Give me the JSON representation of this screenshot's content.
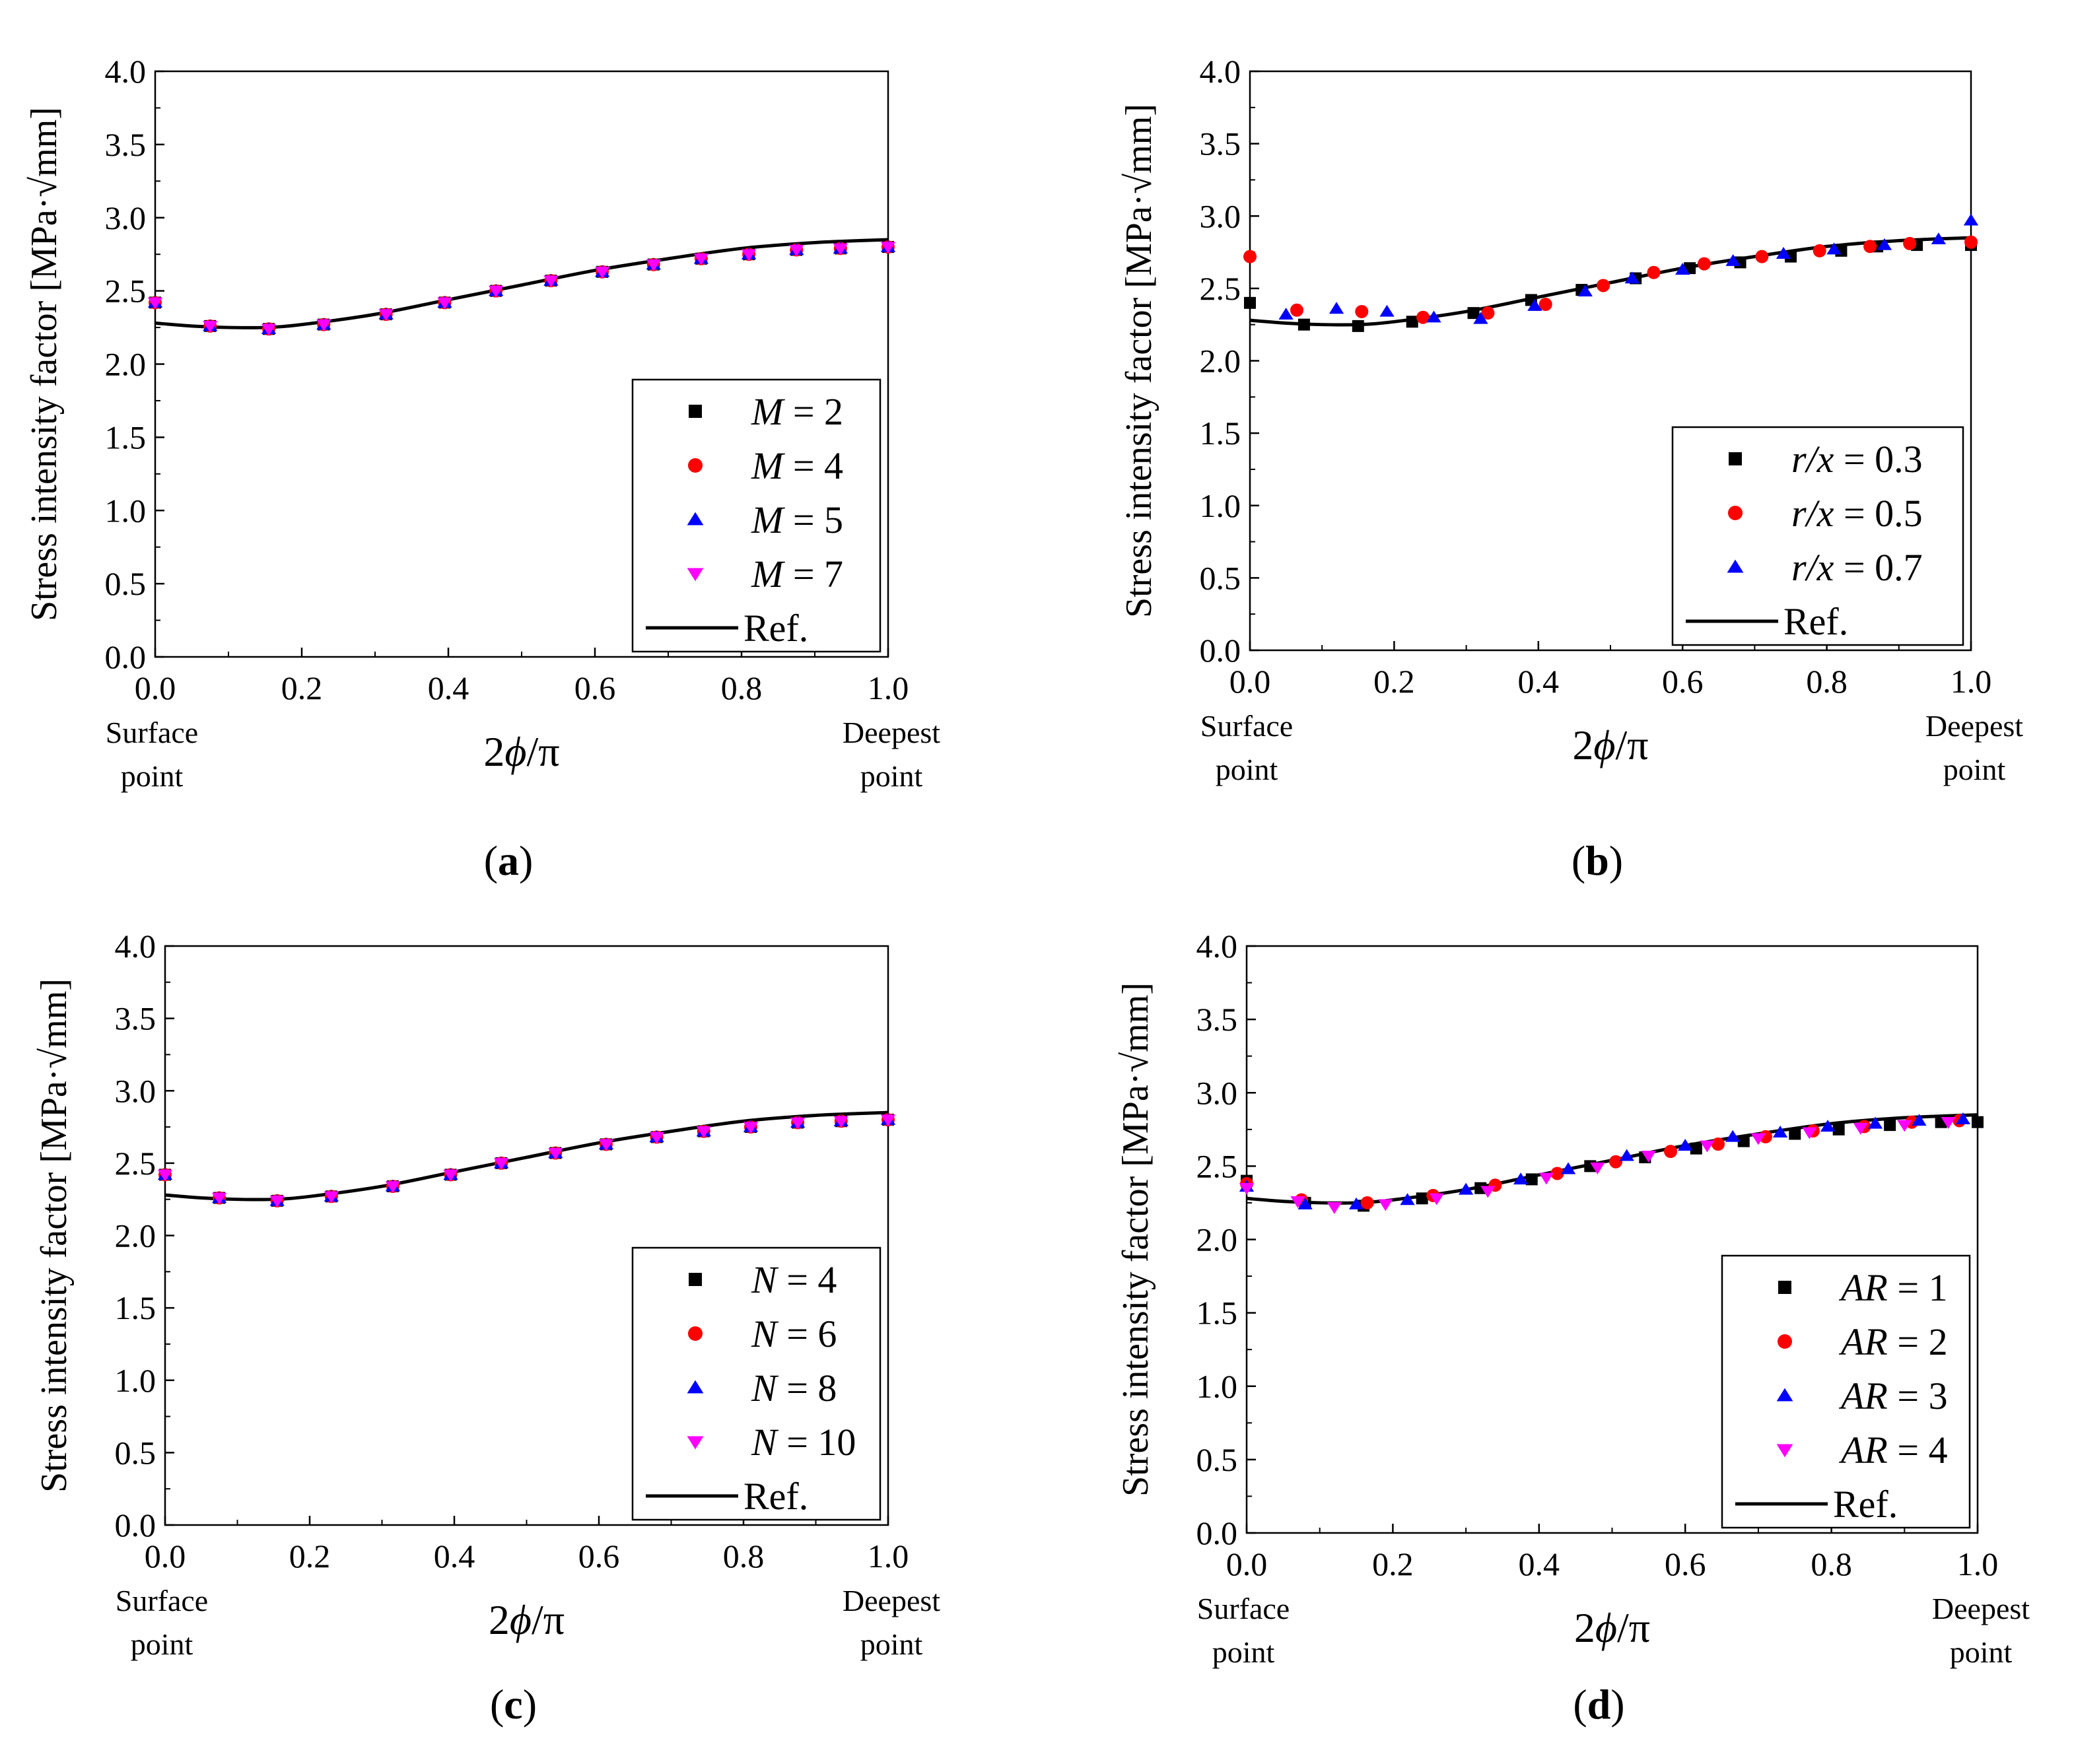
{
  "chart_data": [
    {
      "type": "scatter",
      "panel_label": "(a)",
      "caption_letter": "a",
      "ylabel": "Stress intensity factor [MPa·√mm]",
      "xlabel_prefix": "2",
      "xlabel_var": "ϕ",
      "xlabel_suffix": "/π",
      "xlim": [
        0,
        1
      ],
      "ylim": [
        0,
        4
      ],
      "x_ticks": [
        "0.0",
        "0.2",
        "0.4",
        "0.6",
        "0.8",
        "1.0"
      ],
      "y_ticks": [
        "0.0",
        "0.5",
        "1.0",
        "1.5",
        "2.0",
        "2.5",
        "3.0",
        "3.5",
        "4.0"
      ],
      "x_end_labels": {
        "left": [
          "Surface",
          "point"
        ],
        "right": [
          "Deepest",
          "point"
        ]
      },
      "legend_position": "lower-right",
      "reference": {
        "name": "Ref.",
        "x": [
          0,
          0.05,
          0.1,
          0.15,
          0.2,
          0.3,
          0.4,
          0.5,
          0.6,
          0.7,
          0.8,
          0.9,
          1.0
        ],
        "y": [
          2.28,
          2.26,
          2.25,
          2.25,
          2.27,
          2.34,
          2.44,
          2.54,
          2.64,
          2.72,
          2.79,
          2.83,
          2.85
        ]
      },
      "series": [
        {
          "name": "M",
          "value": "= 2",
          "marker": "square",
          "color": "#000000",
          "x": [
            0,
            0.075,
            0.155,
            0.23,
            0.315,
            0.395,
            0.465,
            0.54,
            0.61,
            0.68,
            0.745,
            0.81,
            0.875,
            0.935,
            1.0
          ],
          "y": [
            2.42,
            2.26,
            2.24,
            2.27,
            2.34,
            2.42,
            2.5,
            2.57,
            2.63,
            2.68,
            2.72,
            2.75,
            2.78,
            2.79,
            2.8
          ]
        },
        {
          "name": "M",
          "value": "= 4",
          "marker": "circle",
          "color": "#ff0000",
          "x": [
            0,
            0.075,
            0.155,
            0.23,
            0.315,
            0.395,
            0.465,
            0.54,
            0.61,
            0.68,
            0.745,
            0.81,
            0.875,
            0.935,
            1.0
          ],
          "y": [
            2.42,
            2.26,
            2.24,
            2.27,
            2.34,
            2.42,
            2.5,
            2.57,
            2.63,
            2.68,
            2.72,
            2.75,
            2.78,
            2.79,
            2.8
          ]
        },
        {
          "name": "M",
          "value": "= 5",
          "marker": "triangle-up",
          "color": "#0000ff",
          "x": [
            0,
            0.075,
            0.155,
            0.23,
            0.315,
            0.395,
            0.465,
            0.54,
            0.61,
            0.68,
            0.745,
            0.81,
            0.875,
            0.935,
            1.0
          ],
          "y": [
            2.42,
            2.26,
            2.24,
            2.27,
            2.34,
            2.42,
            2.5,
            2.57,
            2.63,
            2.68,
            2.72,
            2.75,
            2.78,
            2.79,
            2.8
          ]
        },
        {
          "name": "M",
          "value": "= 7",
          "marker": "triangle-down",
          "color": "#ff00ff",
          "x": [
            0,
            0.075,
            0.155,
            0.23,
            0.315,
            0.395,
            0.465,
            0.54,
            0.61,
            0.68,
            0.745,
            0.81,
            0.875,
            0.935,
            1.0
          ],
          "y": [
            2.42,
            2.26,
            2.24,
            2.27,
            2.34,
            2.42,
            2.5,
            2.57,
            2.63,
            2.68,
            2.72,
            2.75,
            2.78,
            2.79,
            2.8
          ]
        }
      ]
    },
    {
      "type": "scatter",
      "panel_label": "(b)",
      "caption_letter": "b",
      "ylabel": "Stress intensity factor [MPa·√mm]",
      "xlabel_prefix": "2",
      "xlabel_var": "ϕ",
      "xlabel_suffix": "/π",
      "xlim": [
        0,
        1
      ],
      "ylim": [
        0,
        4
      ],
      "x_ticks": [
        "0.0",
        "0.2",
        "0.4",
        "0.6",
        "0.8",
        "1.0"
      ],
      "y_ticks": [
        "0.0",
        "0.5",
        "1.0",
        "1.5",
        "2.0",
        "2.5",
        "3.0",
        "3.5",
        "4.0"
      ],
      "x_end_labels": {
        "left": [
          "Surface",
          "point"
        ],
        "right": [
          "Deepest",
          "point"
        ]
      },
      "legend_position": "lower-right",
      "reference": {
        "name": "Ref.",
        "x": [
          0,
          0.05,
          0.1,
          0.15,
          0.2,
          0.3,
          0.4,
          0.5,
          0.6,
          0.7,
          0.8,
          0.9,
          1.0
        ],
        "y": [
          2.28,
          2.26,
          2.25,
          2.25,
          2.27,
          2.34,
          2.44,
          2.54,
          2.64,
          2.72,
          2.79,
          2.83,
          2.85
        ]
      },
      "series": [
        {
          "name": "r/x",
          "value": "= 0.3",
          "marker": "square",
          "color": "#000000",
          "x": [
            0,
            0.075,
            0.15,
            0.225,
            0.31,
            0.39,
            0.46,
            0.535,
            0.61,
            0.68,
            0.75,
            0.82,
            0.87,
            0.925,
            1.0
          ],
          "y": [
            2.4,
            2.25,
            2.24,
            2.27,
            2.33,
            2.42,
            2.49,
            2.57,
            2.64,
            2.68,
            2.72,
            2.76,
            2.79,
            2.8,
            2.8
          ]
        },
        {
          "name": "r/x",
          "value": "= 0.5",
          "marker": "circle",
          "color": "#ff0000",
          "x": [
            0,
            0.065,
            0.155,
            0.24,
            0.33,
            0.41,
            0.49,
            0.56,
            0.63,
            0.71,
            0.79,
            0.86,
            0.915,
            1.0
          ],
          "y": [
            2.72,
            2.35,
            2.34,
            2.3,
            2.33,
            2.39,
            2.52,
            2.61,
            2.67,
            2.72,
            2.76,
            2.79,
            2.81,
            2.82
          ]
        },
        {
          "name": "r/x",
          "value": "= 0.7",
          "marker": "triangle-up",
          "color": "#0000ff",
          "x": [
            0.05,
            0.12,
            0.19,
            0.255,
            0.32,
            0.395,
            0.465,
            0.53,
            0.6,
            0.67,
            0.74,
            0.81,
            0.88,
            0.955,
            1.0
          ],
          "y": [
            2.32,
            2.36,
            2.34,
            2.3,
            2.29,
            2.38,
            2.48,
            2.57,
            2.63,
            2.69,
            2.74,
            2.77,
            2.8,
            2.84,
            2.97
          ]
        }
      ]
    },
    {
      "type": "scatter",
      "panel_label": "(c)",
      "caption_letter": "c",
      "ylabel": "Stress intensity factor [MPa·√mm]",
      "xlabel_prefix": "2",
      "xlabel_var": "ϕ",
      "xlabel_suffix": "/π",
      "xlim": [
        0,
        1
      ],
      "ylim": [
        0,
        4
      ],
      "x_ticks": [
        "0.0",
        "0.2",
        "0.4",
        "0.6",
        "0.8",
        "1.0"
      ],
      "y_ticks": [
        "0.0",
        "0.5",
        "1.0",
        "1.5",
        "2.0",
        "2.5",
        "3.0",
        "3.5",
        "4.0"
      ],
      "x_end_labels": {
        "left": [
          "Surface",
          "point"
        ],
        "right": [
          "Deepest",
          "point"
        ]
      },
      "legend_position": "lower-right",
      "reference": {
        "name": "Ref.",
        "x": [
          0,
          0.05,
          0.1,
          0.15,
          0.2,
          0.3,
          0.4,
          0.5,
          0.6,
          0.7,
          0.8,
          0.9,
          1.0
        ],
        "y": [
          2.28,
          2.26,
          2.25,
          2.25,
          2.27,
          2.34,
          2.44,
          2.54,
          2.64,
          2.72,
          2.79,
          2.83,
          2.85
        ]
      },
      "series": [
        {
          "name": "N",
          "value": "= 4",
          "marker": "square",
          "color": "#000000",
          "x": [
            0,
            0.075,
            0.155,
            0.23,
            0.315,
            0.395,
            0.465,
            0.54,
            0.61,
            0.68,
            0.745,
            0.81,
            0.875,
            0.935,
            1.0
          ],
          "y": [
            2.42,
            2.26,
            2.24,
            2.27,
            2.34,
            2.42,
            2.5,
            2.57,
            2.63,
            2.68,
            2.72,
            2.75,
            2.78,
            2.79,
            2.8
          ]
        },
        {
          "name": "N",
          "value": "= 6",
          "marker": "circle",
          "color": "#ff0000",
          "x": [
            0,
            0.075,
            0.155,
            0.23,
            0.315,
            0.395,
            0.465,
            0.54,
            0.61,
            0.68,
            0.745,
            0.81,
            0.875,
            0.935,
            1.0
          ],
          "y": [
            2.42,
            2.26,
            2.24,
            2.27,
            2.34,
            2.42,
            2.5,
            2.57,
            2.63,
            2.68,
            2.72,
            2.75,
            2.78,
            2.79,
            2.8
          ]
        },
        {
          "name": "N",
          "value": "= 8",
          "marker": "triangle-up",
          "color": "#0000ff",
          "x": [
            0,
            0.075,
            0.155,
            0.23,
            0.315,
            0.395,
            0.465,
            0.54,
            0.61,
            0.68,
            0.745,
            0.81,
            0.875,
            0.935,
            1.0
          ],
          "y": [
            2.42,
            2.26,
            2.24,
            2.27,
            2.34,
            2.42,
            2.5,
            2.57,
            2.63,
            2.68,
            2.72,
            2.75,
            2.78,
            2.79,
            2.8
          ]
        },
        {
          "name": "N",
          "value": "= 10",
          "marker": "triangle-down",
          "color": "#ff00ff",
          "x": [
            0,
            0.075,
            0.155,
            0.23,
            0.315,
            0.395,
            0.465,
            0.54,
            0.61,
            0.68,
            0.745,
            0.81,
            0.875,
            0.935,
            1.0
          ],
          "y": [
            2.42,
            2.26,
            2.24,
            2.27,
            2.34,
            2.42,
            2.5,
            2.57,
            2.63,
            2.68,
            2.72,
            2.75,
            2.78,
            2.79,
            2.8
          ]
        }
      ]
    },
    {
      "type": "scatter",
      "panel_label": "(d)",
      "caption_letter": "d",
      "ylabel": "Stress intensity factor [MPa·√mm]",
      "xlabel_prefix": "2",
      "xlabel_var": "ϕ",
      "xlabel_suffix": "/π",
      "xlim": [
        0,
        1
      ],
      "ylim": [
        0,
        4
      ],
      "x_ticks": [
        "0.0",
        "0.2",
        "0.4",
        "0.6",
        "0.8",
        "1.0"
      ],
      "y_ticks": [
        "0.0",
        "0.5",
        "1.0",
        "1.5",
        "2.0",
        "2.5",
        "3.0",
        "3.5",
        "4.0"
      ],
      "x_end_labels": {
        "left": [
          "Surface",
          "point"
        ],
        "right": [
          "Deepest",
          "point"
        ]
      },
      "legend_position": "lower-right",
      "reference": {
        "name": "Ref.",
        "x": [
          0,
          0.05,
          0.1,
          0.15,
          0.2,
          0.3,
          0.4,
          0.5,
          0.6,
          0.7,
          0.8,
          0.9,
          1.0
        ],
        "y": [
          2.28,
          2.26,
          2.25,
          2.25,
          2.27,
          2.34,
          2.44,
          2.54,
          2.64,
          2.72,
          2.79,
          2.83,
          2.85
        ]
      },
      "series": [
        {
          "name": "AR",
          "value": "= 1",
          "marker": "square",
          "color": "#000000",
          "x": [
            0,
            0.08,
            0.16,
            0.24,
            0.32,
            0.39,
            0.47,
            0.545,
            0.615,
            0.68,
            0.75,
            0.81,
            0.88,
            0.95,
            1.0
          ],
          "y": [
            2.4,
            2.25,
            2.23,
            2.28,
            2.35,
            2.41,
            2.5,
            2.56,
            2.62,
            2.67,
            2.72,
            2.75,
            2.78,
            2.8,
            2.8
          ]
        },
        {
          "name": "AR",
          "value": "= 2",
          "marker": "circle",
          "color": "#ff0000",
          "x": [
            0,
            0.075,
            0.165,
            0.255,
            0.34,
            0.425,
            0.505,
            0.58,
            0.645,
            0.71,
            0.775,
            0.845,
            0.91,
            0.975
          ],
          "y": [
            2.38,
            2.27,
            2.25,
            2.3,
            2.37,
            2.45,
            2.53,
            2.6,
            2.65,
            2.7,
            2.74,
            2.77,
            2.8,
            2.81
          ]
        },
        {
          "name": "AR",
          "value": "= 3",
          "marker": "triangle-up",
          "color": "#0000ff",
          "x": [
            0,
            0.08,
            0.15,
            0.22,
            0.3,
            0.375,
            0.44,
            0.52,
            0.6,
            0.665,
            0.73,
            0.795,
            0.86,
            0.92,
            0.98
          ],
          "y": [
            2.36,
            2.24,
            2.24,
            2.27,
            2.34,
            2.41,
            2.48,
            2.57,
            2.64,
            2.7,
            2.73,
            2.77,
            2.79,
            2.81,
            2.82
          ]
        },
        {
          "name": "AR",
          "value": "= 4",
          "marker": "triangle-down",
          "color": "#ff00ff",
          "x": [
            0,
            0.07,
            0.12,
            0.19,
            0.26,
            0.33,
            0.41,
            0.48,
            0.55,
            0.63,
            0.7,
            0.77,
            0.84,
            0.9,
            0.96
          ],
          "y": [
            2.35,
            2.26,
            2.22,
            2.24,
            2.28,
            2.33,
            2.42,
            2.49,
            2.57,
            2.64,
            2.69,
            2.73,
            2.76,
            2.78,
            2.8
          ]
        }
      ]
    }
  ]
}
